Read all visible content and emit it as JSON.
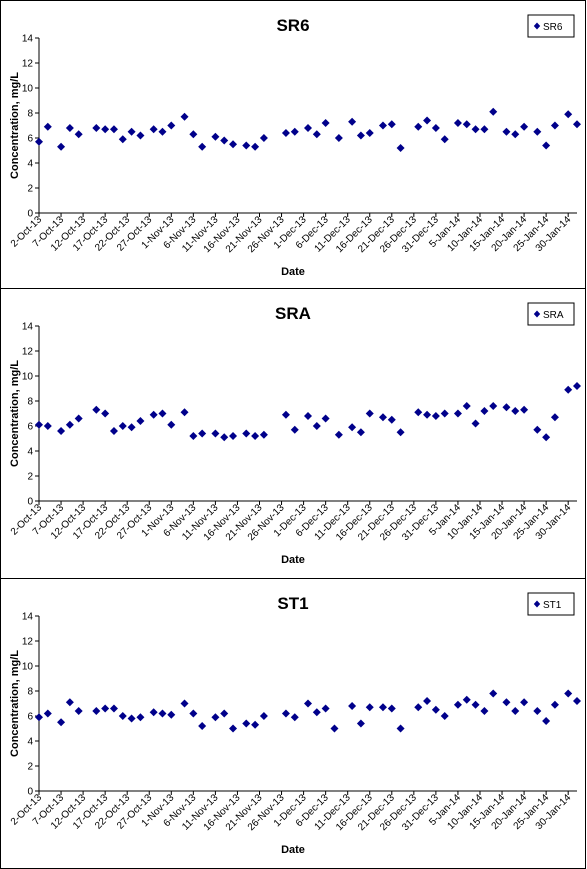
{
  "chart_data": [
    {
      "type": "scatter",
      "title": "SR6",
      "xlabel": "Date",
      "ylabel": "Concentration, mg/L",
      "ylim": [
        0,
        14
      ],
      "yticks": [
        0,
        2,
        4,
        6,
        8,
        10,
        12,
        14
      ],
      "xlim": [
        "2-Oct-13",
        "1-Feb-14"
      ],
      "xticks": [
        "2-Oct-13",
        "7-Oct-13",
        "12-Oct-13",
        "17-Oct-13",
        "22-Oct-13",
        "27-Oct-13",
        "1-Nov-13",
        "6-Nov-13",
        "11-Nov-13",
        "16-Nov-13",
        "21-Nov-13",
        "26-Nov-13",
        "1-Dec-13",
        "6-Dec-13",
        "11-Dec-13",
        "16-Dec-13",
        "21-Dec-13",
        "26-Dec-13",
        "31-Dec-13",
        "5-Jan-14",
        "10-Jan-14",
        "15-Jan-14",
        "20-Jan-14",
        "25-Jan-14",
        "30-Jan-14"
      ],
      "legend": "top-right",
      "color": "#00008B",
      "series": [
        {
          "name": "SR6",
          "points": [
            {
              "x": "2-Oct-13",
              "y": 5.7
            },
            {
              "x": "4-Oct-13",
              "y": 6.9
            },
            {
              "x": "7-Oct-13",
              "y": 5.3
            },
            {
              "x": "9-Oct-13",
              "y": 6.8
            },
            {
              "x": "11-Oct-13",
              "y": 6.3
            },
            {
              "x": "15-Oct-13",
              "y": 6.8
            },
            {
              "x": "17-Oct-13",
              "y": 6.7
            },
            {
              "x": "19-Oct-13",
              "y": 6.7
            },
            {
              "x": "21-Oct-13",
              "y": 5.9
            },
            {
              "x": "23-Oct-13",
              "y": 6.5
            },
            {
              "x": "25-Oct-13",
              "y": 6.2
            },
            {
              "x": "28-Oct-13",
              "y": 6.7
            },
            {
              "x": "30-Oct-13",
              "y": 6.5
            },
            {
              "x": "1-Nov-13",
              "y": 7.0
            },
            {
              "x": "4-Nov-13",
              "y": 7.7
            },
            {
              "x": "6-Nov-13",
              "y": 6.3
            },
            {
              "x": "8-Nov-13",
              "y": 5.3
            },
            {
              "x": "11-Nov-13",
              "y": 6.1
            },
            {
              "x": "13-Nov-13",
              "y": 5.8
            },
            {
              "x": "15-Nov-13",
              "y": 5.5
            },
            {
              "x": "18-Nov-13",
              "y": 5.4
            },
            {
              "x": "20-Nov-13",
              "y": 5.3
            },
            {
              "x": "22-Nov-13",
              "y": 6.0
            },
            {
              "x": "27-Nov-13",
              "y": 6.4
            },
            {
              "x": "29-Nov-13",
              "y": 6.5
            },
            {
              "x": "2-Dec-13",
              "y": 6.8
            },
            {
              "x": "4-Dec-13",
              "y": 6.3
            },
            {
              "x": "6-Dec-13",
              "y": 7.2
            },
            {
              "x": "9-Dec-13",
              "y": 6.0
            },
            {
              "x": "12-Dec-13",
              "y": 7.3
            },
            {
              "x": "14-Dec-13",
              "y": 6.2
            },
            {
              "x": "16-Dec-13",
              "y": 6.4
            },
            {
              "x": "19-Dec-13",
              "y": 7.0
            },
            {
              "x": "21-Dec-13",
              "y": 7.1
            },
            {
              "x": "23-Dec-13",
              "y": 5.2
            },
            {
              "x": "27-Dec-13",
              "y": 6.9
            },
            {
              "x": "29-Dec-13",
              "y": 7.4
            },
            {
              "x": "31-Dec-13",
              "y": 6.8
            },
            {
              "x": "2-Jan-14",
              "y": 5.9
            },
            {
              "x": "5-Jan-14",
              "y": 7.2
            },
            {
              "x": "7-Jan-14",
              "y": 7.1
            },
            {
              "x": "9-Jan-14",
              "y": 6.7
            },
            {
              "x": "11-Jan-14",
              "y": 6.7
            },
            {
              "x": "13-Jan-14",
              "y": 8.1
            },
            {
              "x": "16-Jan-14",
              "y": 6.5
            },
            {
              "x": "18-Jan-14",
              "y": 6.3
            },
            {
              "x": "20-Jan-14",
              "y": 6.9
            },
            {
              "x": "23-Jan-14",
              "y": 6.5
            },
            {
              "x": "25-Jan-14",
              "y": 5.4
            },
            {
              "x": "27-Jan-14",
              "y": 7.0
            },
            {
              "x": "30-Jan-14",
              "y": 7.9
            },
            {
              "x": "1-Feb-14",
              "y": 7.1
            }
          ]
        }
      ]
    },
    {
      "type": "scatter",
      "title": "SRA",
      "xlabel": "Date",
      "ylabel": "Concentration, mg/L",
      "ylim": [
        0,
        14
      ],
      "yticks": [
        0,
        2,
        4,
        6,
        8,
        10,
        12,
        14
      ],
      "xlim": [
        "2-Oct-13",
        "1-Feb-14"
      ],
      "xticks": [
        "2-Oct-13",
        "7-Oct-13",
        "12-Oct-13",
        "17-Oct-13",
        "22-Oct-13",
        "27-Oct-13",
        "1-Nov-13",
        "6-Nov-13",
        "11-Nov-13",
        "16-Nov-13",
        "21-Nov-13",
        "26-Nov-13",
        "1-Dec-13",
        "6-Dec-13",
        "11-Dec-13",
        "16-Dec-13",
        "21-Dec-13",
        "26-Dec-13",
        "31-Dec-13",
        "5-Jan-14",
        "10-Jan-14",
        "15-Jan-14",
        "20-Jan-14",
        "25-Jan-14",
        "30-Jan-14"
      ],
      "legend": "top-right",
      "color": "#00008B",
      "series": [
        {
          "name": "SRA",
          "points": [
            {
              "x": "2-Oct-13",
              "y": 6.1
            },
            {
              "x": "4-Oct-13",
              "y": 6.0
            },
            {
              "x": "7-Oct-13",
              "y": 5.6
            },
            {
              "x": "9-Oct-13",
              "y": 6.1
            },
            {
              "x": "11-Oct-13",
              "y": 6.6
            },
            {
              "x": "15-Oct-13",
              "y": 7.3
            },
            {
              "x": "17-Oct-13",
              "y": 7.0
            },
            {
              "x": "19-Oct-13",
              "y": 5.6
            },
            {
              "x": "21-Oct-13",
              "y": 6.0
            },
            {
              "x": "23-Oct-13",
              "y": 5.9
            },
            {
              "x": "25-Oct-13",
              "y": 6.4
            },
            {
              "x": "28-Oct-13",
              "y": 6.9
            },
            {
              "x": "30-Oct-13",
              "y": 7.0
            },
            {
              "x": "1-Nov-13",
              "y": 6.1
            },
            {
              "x": "4-Nov-13",
              "y": 7.1
            },
            {
              "x": "6-Nov-13",
              "y": 5.2
            },
            {
              "x": "8-Nov-13",
              "y": 5.4
            },
            {
              "x": "11-Nov-13",
              "y": 5.4
            },
            {
              "x": "13-Nov-13",
              "y": 5.1
            },
            {
              "x": "15-Nov-13",
              "y": 5.2
            },
            {
              "x": "18-Nov-13",
              "y": 5.4
            },
            {
              "x": "20-Nov-13",
              "y": 5.2
            },
            {
              "x": "22-Nov-13",
              "y": 5.3
            },
            {
              "x": "27-Nov-13",
              "y": 6.9
            },
            {
              "x": "29-Nov-13",
              "y": 5.7
            },
            {
              "x": "2-Dec-13",
              "y": 6.8
            },
            {
              "x": "4-Dec-13",
              "y": 6.0
            },
            {
              "x": "6-Dec-13",
              "y": 6.6
            },
            {
              "x": "9-Dec-13",
              "y": 5.3
            },
            {
              "x": "12-Dec-13",
              "y": 5.9
            },
            {
              "x": "14-Dec-13",
              "y": 5.5
            },
            {
              "x": "16-Dec-13",
              "y": 7.0
            },
            {
              "x": "19-Dec-13",
              "y": 6.7
            },
            {
              "x": "21-Dec-13",
              "y": 6.5
            },
            {
              "x": "23-Dec-13",
              "y": 5.5
            },
            {
              "x": "27-Dec-13",
              "y": 7.1
            },
            {
              "x": "29-Dec-13",
              "y": 6.9
            },
            {
              "x": "31-Dec-13",
              "y": 6.8
            },
            {
              "x": "2-Jan-14",
              "y": 7.0
            },
            {
              "x": "5-Jan-14",
              "y": 7.0
            },
            {
              "x": "7-Jan-14",
              "y": 7.6
            },
            {
              "x": "9-Jan-14",
              "y": 6.2
            },
            {
              "x": "11-Jan-14",
              "y": 7.2
            },
            {
              "x": "13-Jan-14",
              "y": 7.6
            },
            {
              "x": "16-Jan-14",
              "y": 7.5
            },
            {
              "x": "18-Jan-14",
              "y": 7.2
            },
            {
              "x": "20-Jan-14",
              "y": 7.3
            },
            {
              "x": "23-Jan-14",
              "y": 5.7
            },
            {
              "x": "25-Jan-14",
              "y": 5.1
            },
            {
              "x": "27-Jan-14",
              "y": 6.7
            },
            {
              "x": "30-Jan-14",
              "y": 8.9
            },
            {
              "x": "1-Feb-14",
              "y": 9.2
            }
          ]
        }
      ]
    },
    {
      "type": "scatter",
      "title": "ST1",
      "xlabel": "Date",
      "ylabel": "Concentration, mg/L",
      "ylim": [
        0,
        14
      ],
      "yticks": [
        0,
        2,
        4,
        6,
        8,
        10,
        12,
        14
      ],
      "xlim": [
        "2-Oct-13",
        "1-Feb-14"
      ],
      "xticks": [
        "2-Oct-13",
        "7-Oct-13",
        "12-Oct-13",
        "17-Oct-13",
        "22-Oct-13",
        "27-Oct-13",
        "1-Nov-13",
        "6-Nov-13",
        "11-Nov-13",
        "16-Nov-13",
        "21-Nov-13",
        "26-Nov-13",
        "1-Dec-13",
        "6-Dec-13",
        "11-Dec-13",
        "16-Dec-13",
        "21-Dec-13",
        "26-Dec-13",
        "31-Dec-13",
        "5-Jan-14",
        "10-Jan-14",
        "15-Jan-14",
        "20-Jan-14",
        "25-Jan-14",
        "30-Jan-14"
      ],
      "legend": "top-right",
      "color": "#00008B",
      "series": [
        {
          "name": "ST1",
          "points": [
            {
              "x": "2-Oct-13",
              "y": 5.9
            },
            {
              "x": "4-Oct-13",
              "y": 6.2
            },
            {
              "x": "7-Oct-13",
              "y": 5.5
            },
            {
              "x": "9-Oct-13",
              "y": 7.1
            },
            {
              "x": "11-Oct-13",
              "y": 6.4
            },
            {
              "x": "15-Oct-13",
              "y": 6.4
            },
            {
              "x": "17-Oct-13",
              "y": 6.6
            },
            {
              "x": "19-Oct-13",
              "y": 6.6
            },
            {
              "x": "21-Oct-13",
              "y": 6.0
            },
            {
              "x": "23-Oct-13",
              "y": 5.8
            },
            {
              "x": "25-Oct-13",
              "y": 5.9
            },
            {
              "x": "28-Oct-13",
              "y": 6.3
            },
            {
              "x": "30-Oct-13",
              "y": 6.2
            },
            {
              "x": "1-Nov-13",
              "y": 6.1
            },
            {
              "x": "4-Nov-13",
              "y": 7.0
            },
            {
              "x": "6-Nov-13",
              "y": 6.2
            },
            {
              "x": "8-Nov-13",
              "y": 5.2
            },
            {
              "x": "11-Nov-13",
              "y": 5.9
            },
            {
              "x": "13-Nov-13",
              "y": 6.2
            },
            {
              "x": "15-Nov-13",
              "y": 5.0
            },
            {
              "x": "18-Nov-13",
              "y": 5.4
            },
            {
              "x": "20-Nov-13",
              "y": 5.3
            },
            {
              "x": "22-Nov-13",
              "y": 6.0
            },
            {
              "x": "27-Nov-13",
              "y": 6.2
            },
            {
              "x": "29-Nov-13",
              "y": 5.9
            },
            {
              "x": "2-Dec-13",
              "y": 7.0
            },
            {
              "x": "4-Dec-13",
              "y": 6.3
            },
            {
              "x": "6-Dec-13",
              "y": 6.6
            },
            {
              "x": "8-Dec-13",
              "y": 5.0
            },
            {
              "x": "12-Dec-13",
              "y": 6.8
            },
            {
              "x": "14-Dec-13",
              "y": 5.4
            },
            {
              "x": "16-Dec-13",
              "y": 6.7
            },
            {
              "x": "19-Dec-13",
              "y": 6.7
            },
            {
              "x": "21-Dec-13",
              "y": 6.6
            },
            {
              "x": "23-Dec-13",
              "y": 5.0
            },
            {
              "x": "27-Dec-13",
              "y": 6.7
            },
            {
              "x": "29-Dec-13",
              "y": 7.2
            },
            {
              "x": "31-Dec-13",
              "y": 6.5
            },
            {
              "x": "2-Jan-14",
              "y": 6.0
            },
            {
              "x": "5-Jan-14",
              "y": 6.9
            },
            {
              "x": "7-Jan-14",
              "y": 7.3
            },
            {
              "x": "9-Jan-14",
              "y": 6.9
            },
            {
              "x": "11-Jan-14",
              "y": 6.4
            },
            {
              "x": "13-Jan-14",
              "y": 7.8
            },
            {
              "x": "16-Jan-14",
              "y": 7.1
            },
            {
              "x": "18-Jan-14",
              "y": 6.4
            },
            {
              "x": "20-Jan-14",
              "y": 7.1
            },
            {
              "x": "23-Jan-14",
              "y": 6.4
            },
            {
              "x": "25-Jan-14",
              "y": 5.6
            },
            {
              "x": "27-Jan-14",
              "y": 6.9
            },
            {
              "x": "30-Jan-14",
              "y": 7.8
            },
            {
              "x": "1-Feb-14",
              "y": 7.2
            }
          ]
        }
      ]
    }
  ]
}
